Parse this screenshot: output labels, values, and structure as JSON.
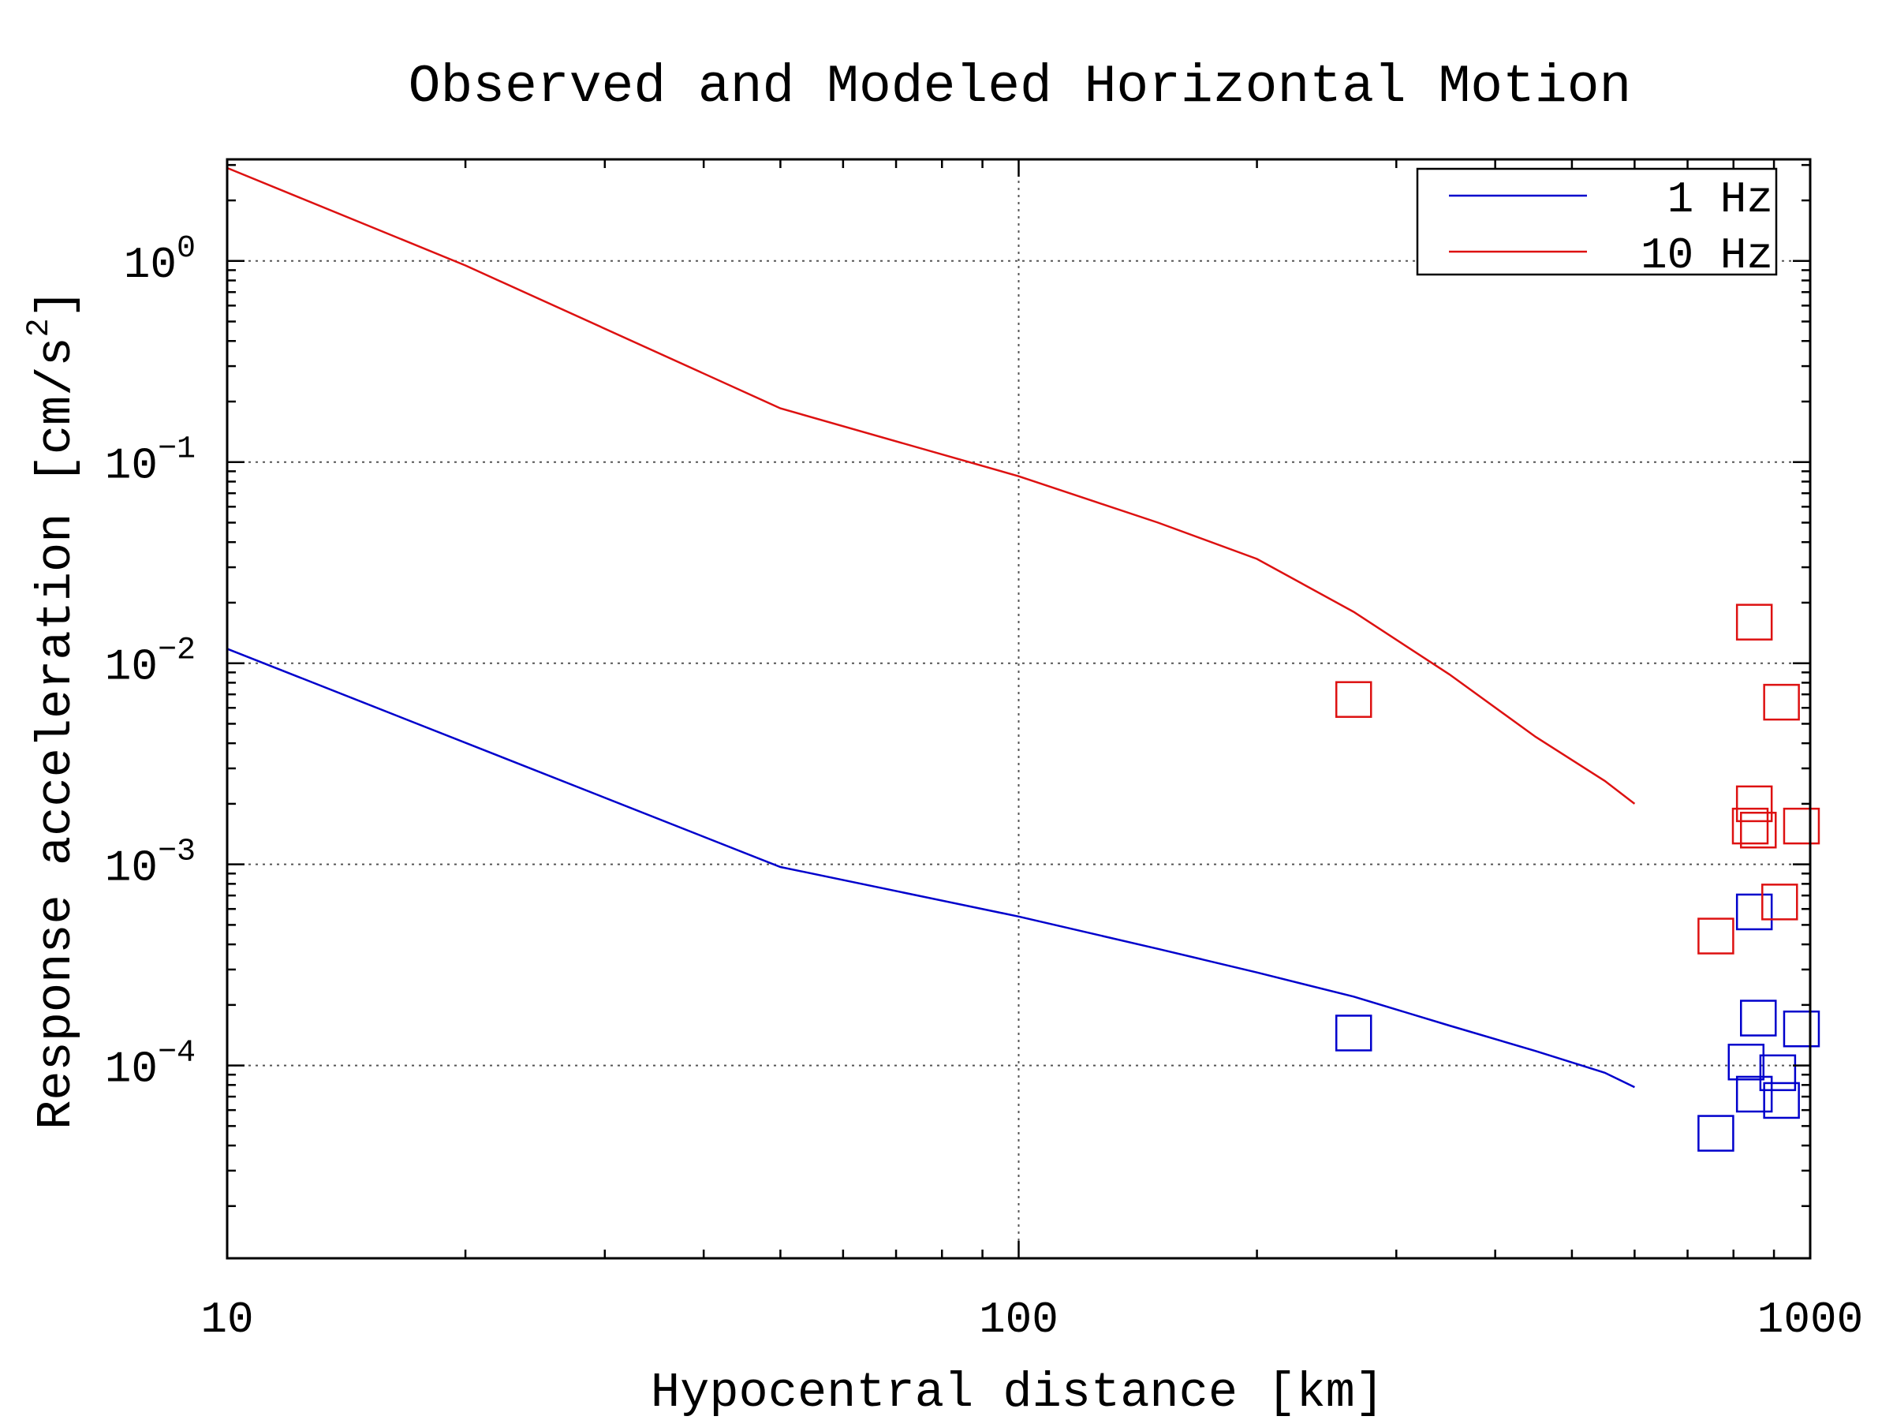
{
  "chart_data": {
    "type": "line",
    "title": "Observed and Modeled Horizontal Motion",
    "xlabel": "Hypocentral distance [km]",
    "ylabel_main": "Response acceleration [cm/s",
    "ylabel_sup": "2",
    "ylabel_close": "]",
    "x_scale": "log",
    "y_scale": "log",
    "xlim": [
      10,
      1000
    ],
    "ylim": [
      1.1e-05,
      3.2
    ],
    "x_ticks": [
      {
        "value": 10,
        "label": "10"
      },
      {
        "value": 100,
        "label": "100"
      },
      {
        "value": 1000,
        "label": "1000"
      }
    ],
    "y_ticks": [
      {
        "value": 1,
        "base": "10",
        "exp": "0"
      },
      {
        "value": 0.1,
        "base": "10",
        "exp": "−1"
      },
      {
        "value": 0.01,
        "base": "10",
        "exp": "−2"
      },
      {
        "value": 0.001,
        "base": "10",
        "exp": "−3"
      },
      {
        "value": 0.0001,
        "base": "10",
        "exp": "−4"
      }
    ],
    "grid": true,
    "legend_position": "top-right",
    "series": [
      {
        "name": "1 Hz",
        "color": "#0000cc",
        "line": [
          [
            10,
            0.0118
          ],
          [
            50,
            0.00097
          ],
          [
            100,
            0.00055
          ],
          [
            150,
            0.00038
          ],
          [
            200,
            0.00029
          ],
          [
            265,
            0.00022
          ],
          [
            350,
            0.000158
          ],
          [
            450,
            0.000118
          ],
          [
            550,
            9.2e-05
          ],
          [
            600,
            7.8e-05
          ]
        ],
        "observed": [
          [
            265,
            0.000145
          ],
          [
            760,
            4.6e-05
          ],
          [
            850,
            0.00058
          ],
          [
            860,
            0.000172
          ],
          [
            830,
            0.000104
          ],
          [
            850,
            7.2e-05
          ],
          [
            910,
            9.2e-05
          ],
          [
            920,
            6.7e-05
          ],
          [
            975,
            0.000152
          ]
        ]
      },
      {
        "name": "10 Hz",
        "color": "#dd1111",
        "line": [
          [
            10,
            2.9
          ],
          [
            20,
            0.95
          ],
          [
            50,
            0.185
          ],
          [
            100,
            0.085
          ],
          [
            150,
            0.05
          ],
          [
            200,
            0.033
          ],
          [
            265,
            0.018
          ],
          [
            350,
            0.0088
          ],
          [
            450,
            0.0043
          ],
          [
            550,
            0.0026
          ],
          [
            600,
            0.002
          ]
        ],
        "observed": [
          [
            265,
            0.0066
          ],
          [
            760,
            0.00044
          ],
          [
            850,
            0.016
          ],
          [
            920,
            0.0064
          ],
          [
            850,
            0.002
          ],
          [
            840,
            0.00155
          ],
          [
            860,
            0.00148
          ],
          [
            975,
            0.00155
          ],
          [
            915,
            0.00065
          ]
        ]
      }
    ]
  }
}
